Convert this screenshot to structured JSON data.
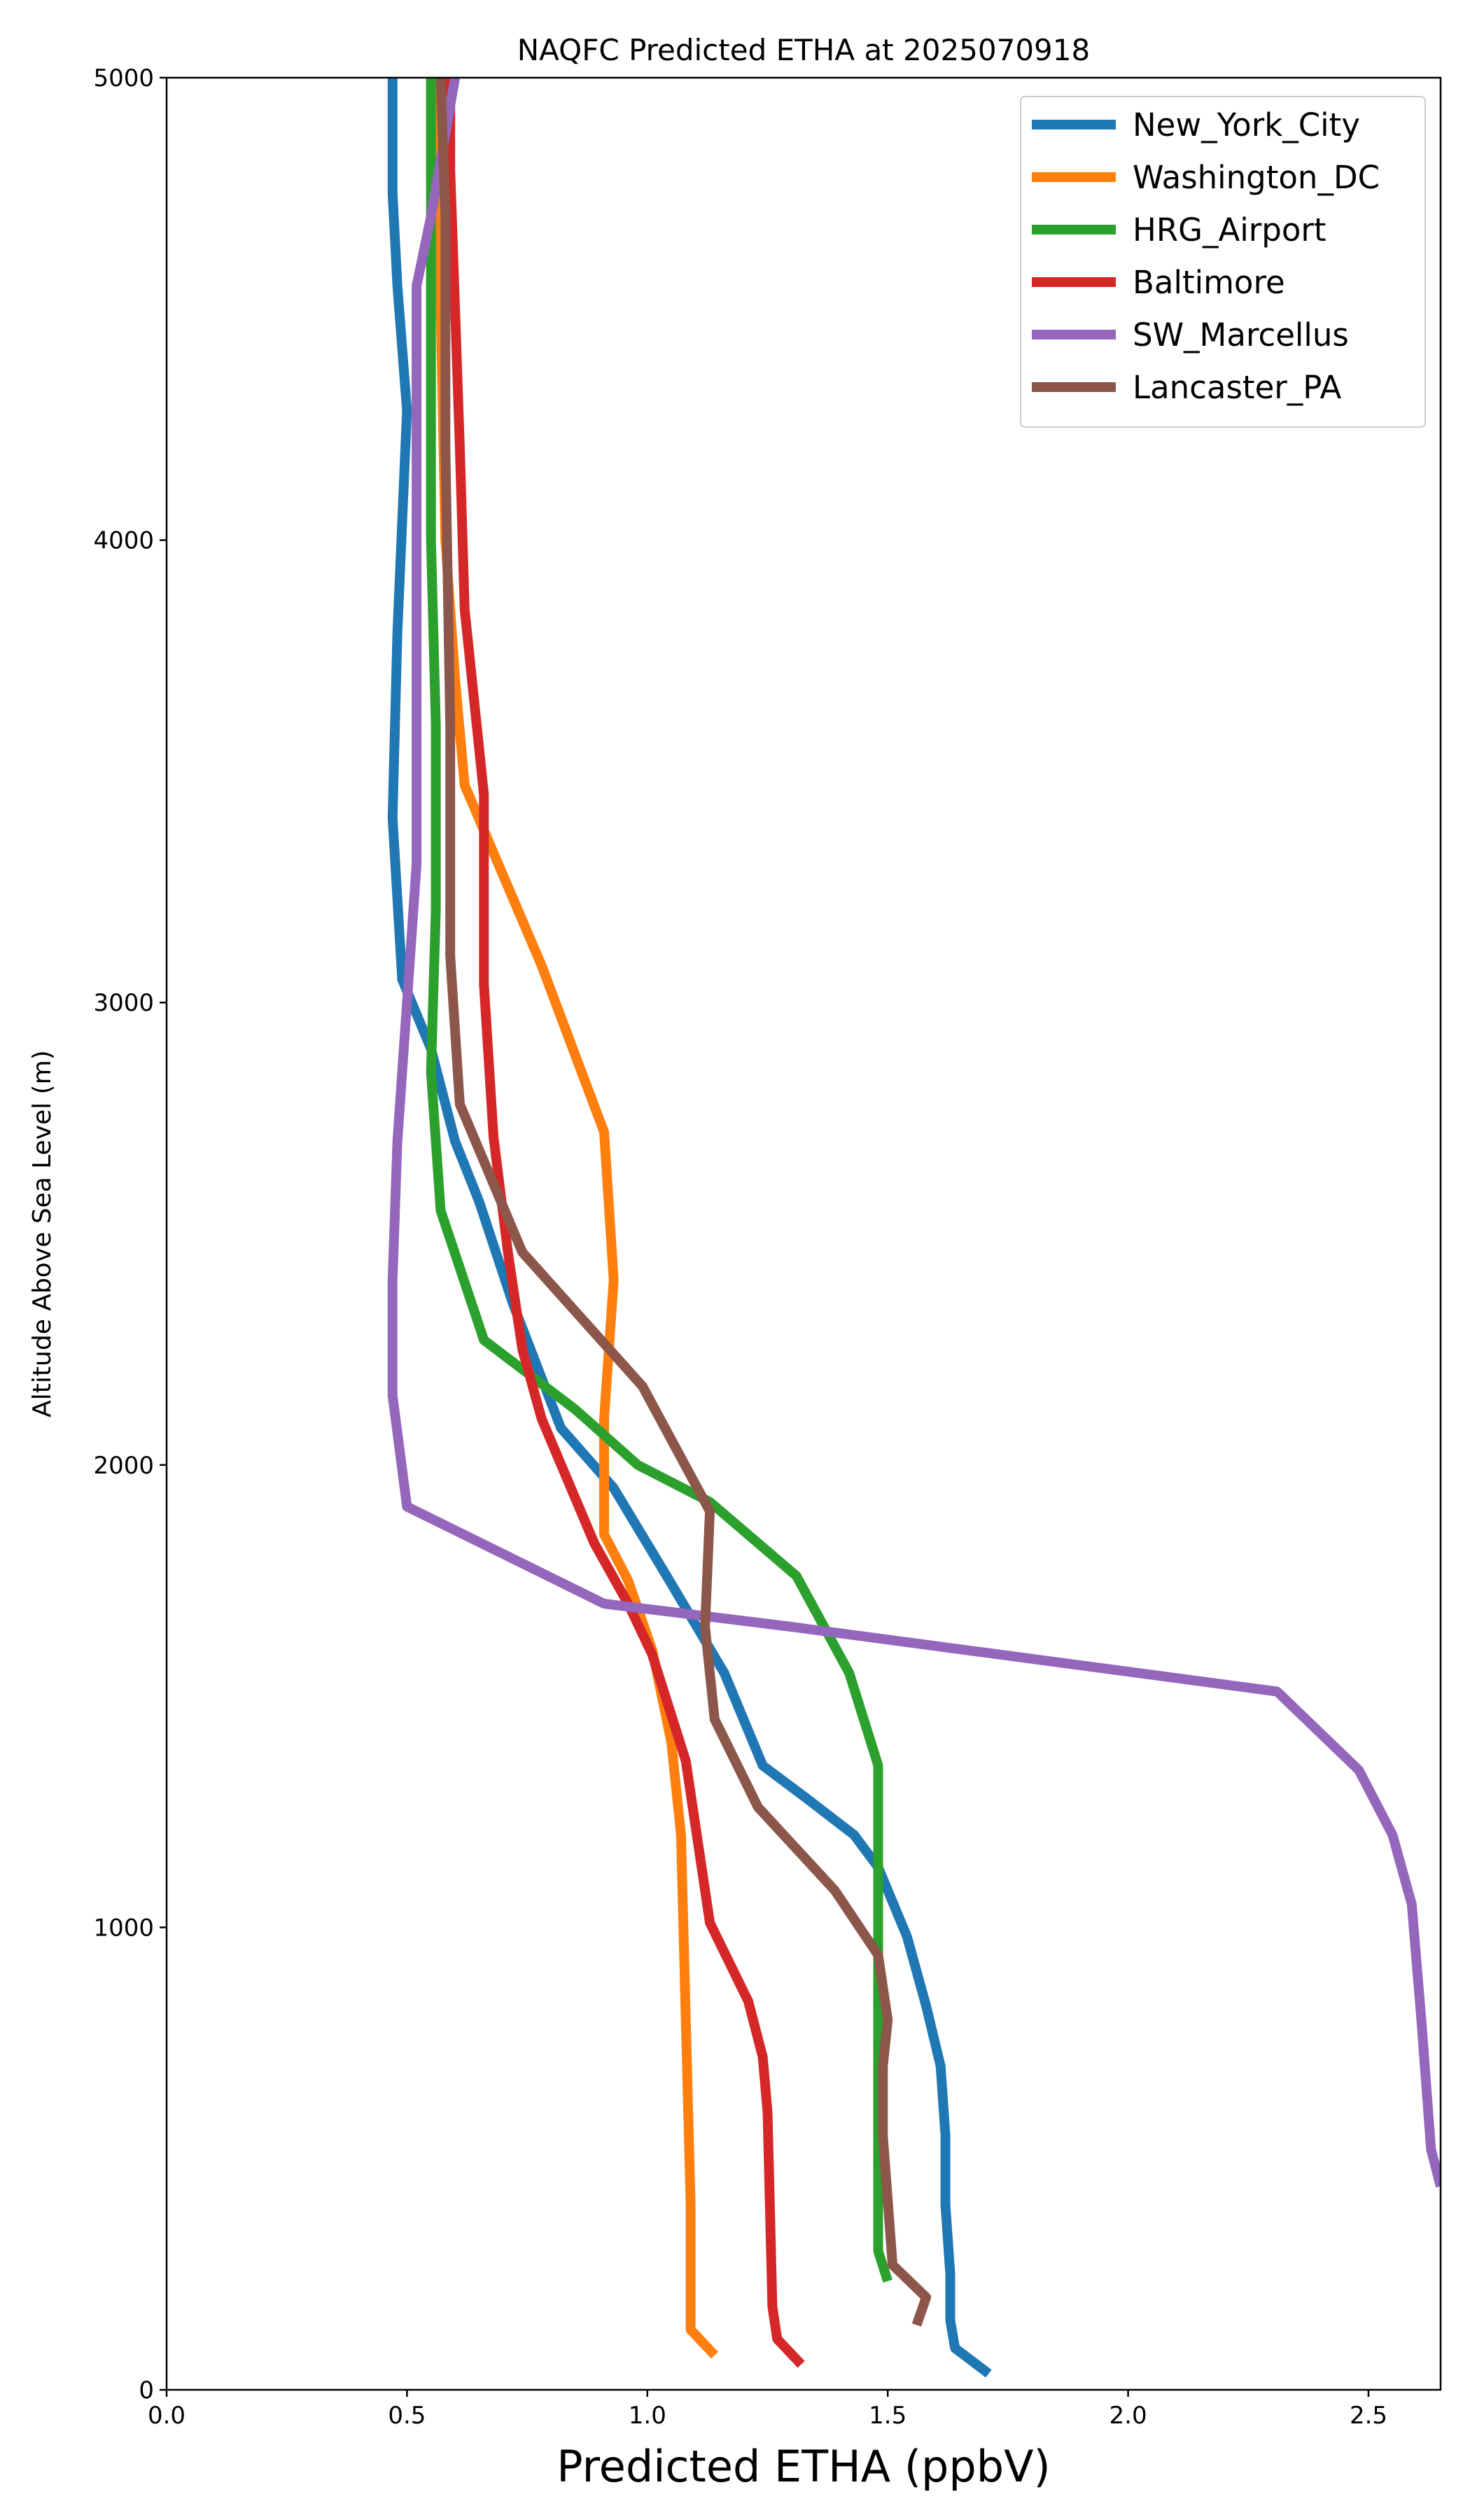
{
  "chart_data": {
    "type": "line",
    "title": "NAQFC Predicted ETHA at 2025070918",
    "xlabel": "Predicted ETHA (ppbV)",
    "ylabel": "Altitude Above Sea Level (m)",
    "xlim": [
      0,
      2.65
    ],
    "ylim": [
      0,
      5000
    ],
    "xticks": [
      "0.0",
      "0.5",
      "1.0",
      "1.5",
      "2.0",
      "2.5"
    ],
    "xtick_values": [
      0,
      0.5,
      1.0,
      1.5,
      2.0,
      2.5
    ],
    "yticks": [
      "0",
      "1000",
      "2000",
      "3000",
      "4000",
      "5000"
    ],
    "ytick_values": [
      0,
      1000,
      2000,
      3000,
      4000,
      5000
    ],
    "grid": false,
    "legend_position": "top-right",
    "series": [
      {
        "name": "New_York_City",
        "color": "#1f77b4",
        "points": [
          [
            1.71,
            35
          ],
          [
            1.64,
            90
          ],
          [
            1.63,
            150
          ],
          [
            1.63,
            250
          ],
          [
            1.62,
            400
          ],
          [
            1.62,
            550
          ],
          [
            1.61,
            700
          ],
          [
            1.58,
            830
          ],
          [
            1.54,
            980
          ],
          [
            1.48,
            1130
          ],
          [
            1.43,
            1200
          ],
          [
            1.33,
            1280
          ],
          [
            1.24,
            1350
          ],
          [
            1.16,
            1550
          ],
          [
            1.04,
            1760
          ],
          [
            0.93,
            1950
          ],
          [
            0.82,
            2080
          ],
          [
            0.72,
            2350
          ],
          [
            0.65,
            2570
          ],
          [
            0.6,
            2700
          ],
          [
            0.55,
            2900
          ],
          [
            0.49,
            3050
          ],
          [
            0.47,
            3400
          ],
          [
            0.48,
            3800
          ],
          [
            0.5,
            4280
          ],
          [
            0.48,
            4550
          ],
          [
            0.47,
            4750
          ],
          [
            0.47,
            5000
          ]
        ]
      },
      {
        "name": "Washington_DC",
        "color": "#ff7f0e",
        "points": [
          [
            1.14,
            75
          ],
          [
            1.09,
            130
          ],
          [
            1.09,
            400
          ],
          [
            1.08,
            800
          ],
          [
            1.07,
            1200
          ],
          [
            1.05,
            1400
          ],
          [
            1.01,
            1600
          ],
          [
            0.96,
            1750
          ],
          [
            0.91,
            1850
          ],
          [
            0.91,
            2100
          ],
          [
            0.93,
            2400
          ],
          [
            0.91,
            2720
          ],
          [
            0.78,
            3080
          ],
          [
            0.62,
            3470
          ],
          [
            0.6,
            3700
          ],
          [
            0.58,
            4000
          ],
          [
            0.57,
            4500
          ],
          [
            0.56,
            5000
          ]
        ]
      },
      {
        "name": "HRG_Airport",
        "color": "#2ca02c",
        "points": [
          [
            1.5,
            235
          ],
          [
            1.48,
            300
          ],
          [
            1.48,
            600
          ],
          [
            1.48,
            900
          ],
          [
            1.48,
            1150
          ],
          [
            1.48,
            1350
          ],
          [
            1.42,
            1550
          ],
          [
            1.31,
            1760
          ],
          [
            1.13,
            1920
          ],
          [
            0.98,
            2000
          ],
          [
            0.85,
            2120
          ],
          [
            0.66,
            2270
          ],
          [
            0.57,
            2550
          ],
          [
            0.55,
            2850
          ],
          [
            0.56,
            3200
          ],
          [
            0.56,
            3600
          ],
          [
            0.55,
            4000
          ],
          [
            0.55,
            4500
          ],
          [
            0.55,
            5000
          ]
        ]
      },
      {
        "name": "Baltimore",
        "color": "#d62728",
        "points": [
          [
            1.32,
            55
          ],
          [
            1.27,
            110
          ],
          [
            1.26,
            180
          ],
          [
            1.25,
            600
          ],
          [
            1.24,
            720
          ],
          [
            1.21,
            840
          ],
          [
            1.13,
            1010
          ],
          [
            1.08,
            1360
          ],
          [
            1.01,
            1590
          ],
          [
            0.96,
            1700
          ],
          [
            0.89,
            1830
          ],
          [
            0.78,
            2100
          ],
          [
            0.74,
            2250
          ],
          [
            0.71,
            2460
          ],
          [
            0.68,
            2710
          ],
          [
            0.66,
            3040
          ],
          [
            0.66,
            3450
          ],
          [
            0.62,
            3850
          ],
          [
            0.61,
            4200
          ],
          [
            0.6,
            4500
          ],
          [
            0.59,
            4800
          ],
          [
            0.59,
            5000
          ]
        ]
      },
      {
        "name": "SW_Marcellus",
        "color": "#9467bd",
        "points": [
          [
            2.65,
            440
          ],
          [
            2.63,
            520
          ],
          [
            2.61,
            800
          ],
          [
            2.59,
            1050
          ],
          [
            2.55,
            1200
          ],
          [
            2.48,
            1340
          ],
          [
            2.31,
            1510
          ],
          [
            1.3,
            1650
          ],
          [
            0.91,
            1700
          ],
          [
            0.5,
            1910
          ],
          [
            0.47,
            2150
          ],
          [
            0.47,
            2400
          ],
          [
            0.48,
            2700
          ],
          [
            0.5,
            3000
          ],
          [
            0.52,
            3300
          ],
          [
            0.52,
            3700
          ],
          [
            0.52,
            4000
          ],
          [
            0.52,
            4550
          ],
          [
            0.55,
            4700
          ],
          [
            0.6,
            5000
          ]
        ]
      },
      {
        "name": "Lancaster_PA",
        "color": "#8c564b",
        "points": [
          [
            1.56,
            140
          ],
          [
            1.58,
            200
          ],
          [
            1.51,
            270
          ],
          [
            1.49,
            550
          ],
          [
            1.49,
            700
          ],
          [
            1.5,
            800
          ],
          [
            1.48,
            940
          ],
          [
            1.39,
            1080
          ],
          [
            1.23,
            1260
          ],
          [
            1.14,
            1450
          ],
          [
            1.12,
            1650
          ],
          [
            1.13,
            1900
          ],
          [
            0.99,
            2170
          ],
          [
            0.74,
            2460
          ],
          [
            0.61,
            2780
          ],
          [
            0.59,
            3100
          ],
          [
            0.59,
            3600
          ],
          [
            0.58,
            4200
          ],
          [
            0.58,
            4700
          ],
          [
            0.57,
            5000
          ]
        ]
      }
    ]
  }
}
